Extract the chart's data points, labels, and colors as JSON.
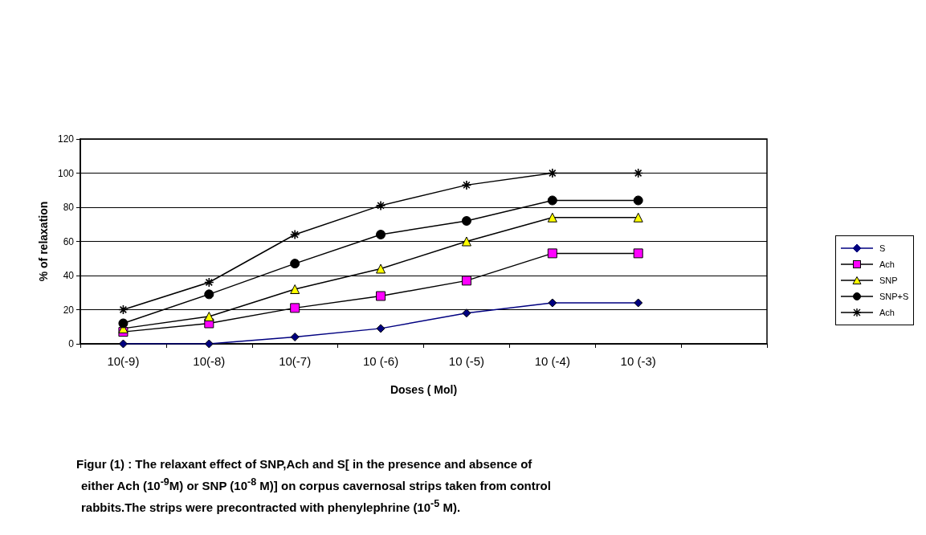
{
  "chart_data": {
    "type": "line",
    "xlabel": "Doses ( Mol)",
    "ylabel": "% of relaxation",
    "categories": [
      "10(-9)",
      "10(-8)",
      "10(-7)",
      "10 (-6)",
      "10 (-5)",
      "10 (-4)",
      "10 (-3)",
      null
    ],
    "series": [
      {
        "name": "S",
        "color": "#000080",
        "marker": "diamond",
        "values": [
          0,
          0,
          4,
          9,
          18,
          24,
          24,
          null
        ]
      },
      {
        "name": "Ach",
        "color": "#000000",
        "colors": [
          "#ff00ff",
          "#ff00ff",
          "#ff00ff",
          "#ff00ff",
          "#ff00ff",
          "#ff00ff",
          "#ff00ff",
          "#ff00ff"
        ],
        "marker": "square",
        "values": [
          7,
          12,
          21,
          28,
          37,
          53,
          53,
          null
        ]
      },
      {
        "name": "SNP",
        "color": "#000000",
        "colors": [
          "#ffff00",
          "#ffff00",
          "#ffff00",
          "#ffff00",
          "#ffff00",
          "#ffff00",
          "#ffff00",
          "#ffff00"
        ],
        "marker": "triangle",
        "values": [
          9,
          16,
          32,
          44,
          60,
          74,
          74,
          null
        ]
      },
      {
        "name": "SNP+S",
        "color": "#000000",
        "marker": "circle",
        "values": [
          12,
          29,
          47,
          64,
          72,
          84,
          84,
          null
        ]
      },
      {
        "name": "Ach",
        "color": "#000000",
        "marker": "cross",
        "values": [
          20,
          36,
          64,
          81,
          93,
          100,
          100,
          null
        ]
      }
    ],
    "ylim": [
      0,
      120
    ],
    "yticks": [
      0,
      20,
      40,
      60,
      80,
      100,
      120
    ],
    "grid": "y",
    "legend": "right",
    "annotations": [
      "Figur (1) :   The relaxant effect of SNP,Ach and S[ in the presence and absence of",
      "either Ach (10$^{-9}$M) or SNP (10$^{-8}$ M)] on corpus cavernosal strips taken from control",
      "rabbits.The strips were precontracted with phenylephrine (10$^{-5}$ M)."
    ]
  }
}
